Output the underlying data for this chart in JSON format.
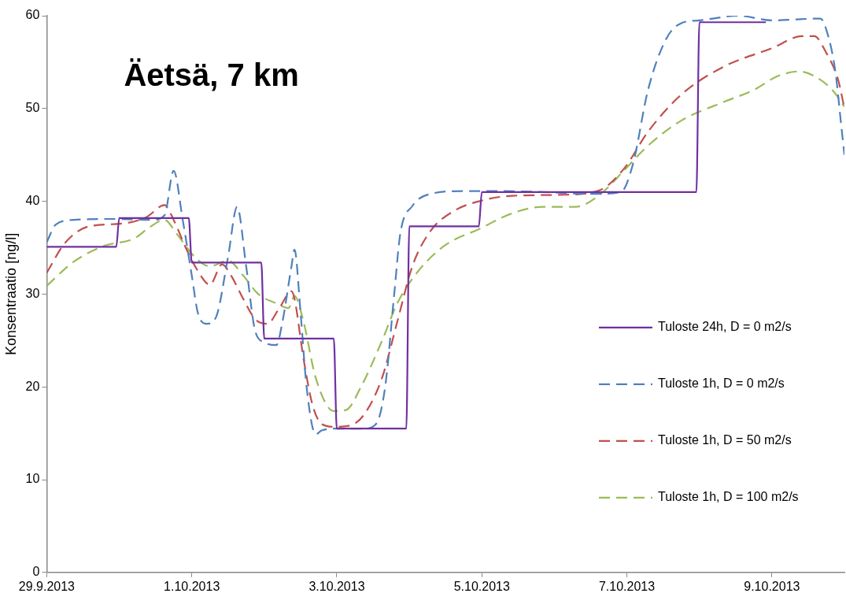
{
  "chart_data": {
    "type": "line",
    "title": "Äetsä, 7 km",
    "ylabel": "Konsentraatio [ng/l]",
    "xlim": [
      "2013-09-29",
      "2013-10-10"
    ],
    "xticks": [
      {
        "value": "2013-09-29",
        "label": "29.9.2013"
      },
      {
        "value": "2013-10-01",
        "label": "1.10.2013"
      },
      {
        "value": "2013-10-03",
        "label": "3.10.2013"
      },
      {
        "value": "2013-10-05",
        "label": "5.10.2013"
      },
      {
        "value": "2013-10-07",
        "label": "7.10.2013"
      },
      {
        "value": "2013-10-09",
        "label": "9.10.2013"
      }
    ],
    "ylim": [
      0,
      60
    ],
    "yticks": [
      0,
      10,
      20,
      30,
      40,
      50,
      60
    ],
    "grid": false,
    "legend": "bottom right",
    "marker": "none",
    "series": [
      {
        "name": "Tuloste 24h, D = 0 m2/s",
        "color": "#7030a0",
        "line_style": "solid",
        "x": [
          "2013-09-29T00:00",
          "2013-09-29T23:00",
          "2013-09-30T00:00",
          "2013-09-30T23:00",
          "2013-10-01T00:00",
          "2013-10-01T23:00",
          "2013-10-02T00:00",
          "2013-10-02T23:00",
          "2013-10-03T00:00",
          "2013-10-03T23:00",
          "2013-10-04T00:00",
          "2013-10-04T23:00",
          "2013-10-05T00:00",
          "2013-10-07T23:00",
          "2013-10-08T00:00",
          "2013-10-08T22:00"
        ],
        "values": [
          35.1,
          35.1,
          38.2,
          38.2,
          33.4,
          33.4,
          25.2,
          25.2,
          15.5,
          15.5,
          37.3,
          37.3,
          41,
          41,
          59.3,
          59.3
        ]
      },
      {
        "name": "Tuloste 1h, D = 0 m2/s",
        "color": "#4f81bd",
        "line_style": "dashed",
        "x": [
          "2013-09-29T00:00",
          "2013-09-29T03:00",
          "2013-09-29T09:00",
          "2013-09-29T22:00",
          "2013-09-30T11:00",
          "2013-09-30T15:00",
          "2013-09-30T18:00",
          "2013-09-30T21:00",
          "2013-10-01T00:00",
          "2013-10-01T02:00",
          "2013-10-01T05:00",
          "2013-10-01T08:00",
          "2013-10-01T12:00",
          "2013-10-01T15:00",
          "2013-10-01T18:00",
          "2013-10-01T21:00",
          "2013-10-02T00:00",
          "2013-10-02T04:00",
          "2013-10-02T06:00",
          "2013-10-02T09:00",
          "2013-10-02T10:00",
          "2013-10-02T12:00",
          "2013-10-02T14:00",
          "2013-10-02T17:00",
          "2013-10-02T19:00",
          "2013-10-02T23:00",
          "2013-10-03T09:00",
          "2013-10-03T13:00",
          "2013-10-03T16:00",
          "2013-10-03T19:00",
          "2013-10-03T21:00",
          "2013-10-04T01:00",
          "2013-10-04T07:00",
          "2013-10-04T18:00",
          "2013-10-05T07:00",
          "2013-10-05T20:00",
          "2013-10-06T13:00",
          "2013-10-06T22:00",
          "2013-10-07T02:00",
          "2013-10-07T07:00",
          "2013-10-07T13:00",
          "2013-10-07T18:00",
          "2013-10-08T00:00",
          "2013-10-08T13:00",
          "2013-10-09T00:00",
          "2013-10-09T16:00",
          "2013-10-09T18:00",
          "2013-10-09T21:00",
          "2013-10-09T23:00",
          "2013-10-10T00:00"
        ],
        "values": [
          35.6,
          37.5,
          38,
          38.1,
          38,
          38.5,
          43.3,
          38,
          32,
          28,
          26.8,
          27.5,
          34,
          39.4,
          33,
          26,
          24.8,
          24.5,
          27,
          33,
          34.8,
          28,
          20,
          14.9,
          15.3,
          15.5,
          15.5,
          16,
          20,
          30,
          36.5,
          39.5,
          40.8,
          41.1,
          41.1,
          41,
          40.8,
          41,
          44,
          52,
          57.5,
          59.2,
          59.5,
          60,
          59.5,
          59.7,
          58.5,
          54,
          48,
          45
        ]
      },
      {
        "name": "Tuloste 1h, D = 50 m2/s",
        "color": "#c0504d",
        "line_style": "dashed",
        "x": [
          "2013-09-29T00:00",
          "2013-09-29T06:00",
          "2013-09-29T14:00",
          "2013-09-30T01:00",
          "2013-09-30T09:00",
          "2013-09-30T15:00",
          "2013-09-30T18:00",
          "2013-09-30T22:00",
          "2013-10-01T02:00",
          "2013-10-01T06:00",
          "2013-10-01T10:00",
          "2013-10-01T13:00",
          "2013-10-01T17:00",
          "2013-10-01T21:00",
          "2013-10-02T01:00",
          "2013-10-02T05:00",
          "2013-10-02T09:00",
          "2013-10-02T10:00",
          "2013-10-02T13:00",
          "2013-10-02T16:00",
          "2013-10-02T19:00",
          "2013-10-02T23:00",
          "2013-10-03T04:00",
          "2013-10-03T09:00",
          "2013-10-03T15:00",
          "2013-10-03T20:00",
          "2013-10-04T01:00",
          "2013-10-04T07:00",
          "2013-10-04T15:00",
          "2013-10-04T23:00",
          "2013-10-05T10:00",
          "2013-10-06T02:00",
          "2013-10-06T15:00",
          "2013-10-06T23:00",
          "2013-10-07T07:00",
          "2013-10-07T18:00",
          "2013-10-08T08:00",
          "2013-10-09T00:00",
          "2013-10-09T10:00",
          "2013-10-09T14:00",
          "2013-10-09T18:00",
          "2013-10-09T22:00",
          "2013-10-10T00:00"
        ],
        "values": [
          32.3,
          35.5,
          37.3,
          37.6,
          38.3,
          39.6,
          38,
          35,
          32.5,
          31,
          33.2,
          32,
          29.5,
          27.3,
          26.8,
          28.5,
          30.3,
          29.5,
          23,
          18,
          16,
          15.7,
          15.8,
          17,
          21,
          27,
          33,
          36.8,
          39,
          40,
          40.6,
          40.7,
          41.2,
          43.5,
          47.5,
          51.5,
          54.5,
          56.5,
          57.8,
          57.8,
          56,
          53,
          50
        ]
      },
      {
        "name": "Tuloste 1h, D = 100 m2/s",
        "color": "#9bbb59",
        "line_style": "dashed",
        "x": [
          "2013-09-29T00:00",
          "2013-09-29T09:00",
          "2013-09-29T19:00",
          "2013-09-30T05:00",
          "2013-09-30T10:00",
          "2013-09-30T15:00",
          "2013-09-30T19:00",
          "2013-10-01T01:00",
          "2013-10-01T06:00",
          "2013-10-01T12:00",
          "2013-10-01T17:00",
          "2013-10-01T22:00",
          "2013-10-02T04:00",
          "2013-10-02T08:00",
          "2013-10-02T10:00",
          "2013-10-02T13:00",
          "2013-10-02T17:00",
          "2013-10-02T23:00",
          "2013-10-03T03:00",
          "2013-10-03T08:00",
          "2013-10-03T15:00",
          "2013-10-03T20:00",
          "2013-10-04T03:00",
          "2013-10-04T12:00",
          "2013-10-04T23:00",
          "2013-10-05T10:00",
          "2013-10-05T20:00",
          "2013-10-06T07:00",
          "2013-10-06T15:00",
          "2013-10-06T23:00",
          "2013-10-07T07:00",
          "2013-10-07T18:00",
          "2013-10-08T08:00",
          "2013-10-08T18:00",
          "2013-10-09T02:00",
          "2013-10-09T09:00",
          "2013-10-09T14:00",
          "2013-10-09T20:00",
          "2013-10-10T00:00"
        ],
        "values": [
          30.9,
          33.5,
          35.2,
          36,
          37.2,
          38,
          36.5,
          34,
          33,
          33.6,
          32,
          30,
          29,
          28.5,
          29.8,
          27,
          21,
          17.4,
          17.5,
          20,
          25,
          29,
          32.5,
          35.3,
          37,
          38.7,
          39.4,
          39.4,
          40.7,
          43.3,
          46,
          48.7,
          50.7,
          52,
          53.5,
          54,
          53.5,
          52,
          50.2
        ]
      }
    ]
  }
}
